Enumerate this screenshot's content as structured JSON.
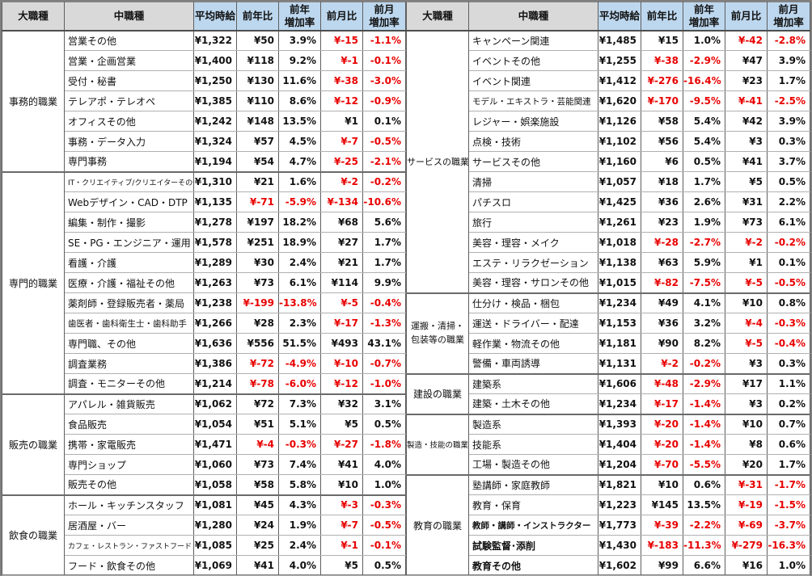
{
  "colors": {
    "negative_value": "#e80000",
    "positive_value": "#111111",
    "header_gray": "#d9d9d9",
    "header_blue": "#bdd7ee"
  },
  "chart_data": {
    "type": "table",
    "columns": [
      "大職種",
      "中職種",
      "平均時給",
      "前年比",
      "前年\n増加率",
      "前月比",
      "前月\n増加率"
    ],
    "tables": [
      {
        "groups": [
          {
            "name": "事務的職業",
            "rows": [
              {
                "label": "営業その他",
                "values": [
                  "¥1,322",
                  "¥50",
                  "3.9%",
                  "¥-15",
                  "-1.1%"
                ]
              },
              {
                "label": "営業・企画営業",
                "values": [
                  "¥1,400",
                  "¥118",
                  "9.2%",
                  "¥-1",
                  "-0.1%"
                ]
              },
              {
                "label": "受付・秘書",
                "values": [
                  "¥1,250",
                  "¥130",
                  "11.6%",
                  "¥-38",
                  "-3.0%"
                ]
              },
              {
                "label": "テレアポ・テレオペ",
                "values": [
                  "¥1,385",
                  "¥110",
                  "8.6%",
                  "¥-12",
                  "-0.9%"
                ]
              },
              {
                "label": "オフィスその他",
                "values": [
                  "¥1,242",
                  "¥148",
                  "13.5%",
                  "¥1",
                  "0.1%"
                ]
              },
              {
                "label": "事務・データ入力",
                "values": [
                  "¥1,324",
                  "¥57",
                  "4.5%",
                  "¥-7",
                  "-0.5%"
                ]
              },
              {
                "label": "専門事務",
                "values": [
                  "¥1,194",
                  "¥54",
                  "4.7%",
                  "¥-25",
                  "-2.1%"
                ]
              }
            ]
          },
          {
            "name": "専門的職業",
            "rows": [
              {
                "label": "IT・クリエイティブ/クリエイターその他",
                "values": [
                  "¥1,310",
                  "¥21",
                  "1.6%",
                  "¥-2",
                  "-0.2%"
                ]
              },
              {
                "label": "Webデザイン・CAD・DTP",
                "values": [
                  "¥1,135",
                  "¥-71",
                  "-5.9%",
                  "¥-134",
                  "-10.6%"
                ]
              },
              {
                "label": "編集・制作・撮影",
                "values": [
                  "¥1,278",
                  "¥197",
                  "18.2%",
                  "¥68",
                  "5.6%"
                ]
              },
              {
                "label": "SE・PG・エンジニア・運用",
                "values": [
                  "¥1,578",
                  "¥251",
                  "18.9%",
                  "¥27",
                  "1.7%"
                ]
              },
              {
                "label": "看護・介護",
                "values": [
                  "¥1,289",
                  "¥30",
                  "2.4%",
                  "¥21",
                  "1.7%"
                ]
              },
              {
                "label": "医療・介護・福祉その他",
                "values": [
                  "¥1,263",
                  "¥73",
                  "6.1%",
                  "¥114",
                  "9.9%"
                ]
              },
              {
                "label": "薬剤師・登録販売者・薬局",
                "values": [
                  "¥1,238",
                  "¥-199",
                  "-13.8%",
                  "¥-5",
                  "-0.4%"
                ]
              },
              {
                "label": "歯医者・歯科衛生士・歯科助手",
                "values": [
                  "¥1,266",
                  "¥28",
                  "2.3%",
                  "¥-17",
                  "-1.3%"
                ]
              },
              {
                "label": "専門職、その他",
                "values": [
                  "¥1,636",
                  "¥556",
                  "51.5%",
                  "¥493",
                  "43.1%"
                ]
              },
              {
                "label": "調査業務",
                "values": [
                  "¥1,386",
                  "¥-72",
                  "-4.9%",
                  "¥-10",
                  "-0.7%"
                ]
              },
              {
                "label": "調査・モニターその他",
                "values": [
                  "¥1,214",
                  "¥-78",
                  "-6.0%",
                  "¥-12",
                  "-1.0%"
                ]
              }
            ]
          },
          {
            "name": "販売の職業",
            "rows": [
              {
                "label": "アパレル・雑貨販売",
                "values": [
                  "¥1,062",
                  "¥72",
                  "7.3%",
                  "¥32",
                  "3.1%"
                ]
              },
              {
                "label": "食品販売",
                "values": [
                  "¥1,054",
                  "¥51",
                  "5.1%",
                  "¥5",
                  "0.5%"
                ]
              },
              {
                "label": "携帯・家電販売",
                "values": [
                  "¥1,471",
                  "¥-4",
                  "-0.3%",
                  "¥-27",
                  "-1.8%"
                ]
              },
              {
                "label": "専門ショップ",
                "values": [
                  "¥1,060",
                  "¥73",
                  "7.4%",
                  "¥41",
                  "4.0%"
                ]
              },
              {
                "label": "販売その他",
                "values": [
                  "¥1,058",
                  "¥58",
                  "5.8%",
                  "¥10",
                  "1.0%"
                ]
              }
            ]
          },
          {
            "name": "飲食の職業",
            "rows": [
              {
                "label": "ホール・キッチンスタッフ",
                "values": [
                  "¥1,081",
                  "¥45",
                  "4.3%",
                  "¥-3",
                  "-0.3%"
                ]
              },
              {
                "label": "居酒屋・バー",
                "values": [
                  "¥1,280",
                  "¥24",
                  "1.9%",
                  "¥-7",
                  "-0.5%"
                ]
              },
              {
                "label": "カフェ・レストラン・ファストフード",
                "values": [
                  "¥1,085",
                  "¥25",
                  "2.4%",
                  "¥-1",
                  "-0.1%"
                ]
              },
              {
                "label": "フード・飲食その他",
                "values": [
                  "¥1,069",
                  "¥41",
                  "4.0%",
                  "¥5",
                  "0.5%"
                ]
              }
            ]
          }
        ]
      },
      {
        "groups": [
          {
            "name": "サービスの職業",
            "rows": [
              {
                "label": "キャンペーン関連",
                "values": [
                  "¥1,485",
                  "¥15",
                  "1.0%",
                  "¥-42",
                  "-2.8%"
                ]
              },
              {
                "label": "イベントその他",
                "values": [
                  "¥1,255",
                  "¥-38",
                  "-2.9%",
                  "¥47",
                  "3.9%"
                ]
              },
              {
                "label": "イベント関連",
                "values": [
                  "¥1,412",
                  "¥-276",
                  "-16.4%",
                  "¥23",
                  "1.7%"
                ]
              },
              {
                "label": "モデル・エキストラ・芸能関連",
                "values": [
                  "¥1,620",
                  "¥-170",
                  "-9.5%",
                  "¥-41",
                  "-2.5%"
                ]
              },
              {
                "label": "レジャー・娯楽施設",
                "values": [
                  "¥1,126",
                  "¥58",
                  "5.4%",
                  "¥42",
                  "3.9%"
                ]
              },
              {
                "label": "点検・技術",
                "values": [
                  "¥1,102",
                  "¥56",
                  "5.4%",
                  "¥3",
                  "0.3%"
                ]
              },
              {
                "label": "サービスその他",
                "values": [
                  "¥1,160",
                  "¥6",
                  "0.5%",
                  "¥41",
                  "3.7%"
                ]
              },
              {
                "label": "清掃",
                "values": [
                  "¥1,057",
                  "¥18",
                  "1.7%",
                  "¥5",
                  "0.5%"
                ]
              },
              {
                "label": "パチスロ",
                "values": [
                  "¥1,425",
                  "¥36",
                  "2.6%",
                  "¥31",
                  "2.2%"
                ]
              },
              {
                "label": "旅行",
                "values": [
                  "¥1,261",
                  "¥23",
                  "1.9%",
                  "¥73",
                  "6.1%"
                ]
              },
              {
                "label": "美容・理容・メイク",
                "values": [
                  "¥1,018",
                  "¥-28",
                  "-2.7%",
                  "¥-2",
                  "-0.2%"
                ]
              },
              {
                "label": "エステ・リラクゼーション",
                "values": [
                  "¥1,138",
                  "¥63",
                  "5.9%",
                  "¥1",
                  "0.1%"
                ]
              },
              {
                "label": "美容・理容・サロンその他",
                "values": [
                  "¥1,015",
                  "¥-82",
                  "-7.5%",
                  "¥-5",
                  "-0.5%"
                ]
              }
            ]
          },
          {
            "name": "運搬・清掃・包装等の職業",
            "rows": [
              {
                "label": "仕分け・検品・梱包",
                "values": [
                  "¥1,234",
                  "¥49",
                  "4.1%",
                  "¥10",
                  "0.8%"
                ]
              },
              {
                "label": "運送・ドライバー・配達",
                "values": [
                  "¥1,153",
                  "¥36",
                  "3.2%",
                  "¥-4",
                  "-0.3%"
                ]
              },
              {
                "label": "軽作業・物流その他",
                "values": [
                  "¥1,181",
                  "¥90",
                  "8.2%",
                  "¥-5",
                  "-0.4%"
                ]
              },
              {
                "label": "警備・車両誘導",
                "values": [
                  "¥1,131",
                  "¥-2",
                  "-0.2%",
                  "¥3",
                  "0.3%"
                ]
              }
            ]
          },
          {
            "name": "建設の職業",
            "rows": [
              {
                "label": "建築系",
                "values": [
                  "¥1,606",
                  "¥-48",
                  "-2.9%",
                  "¥17",
                  "1.1%"
                ]
              },
              {
                "label": "建築・土木その他",
                "values": [
                  "¥1,234",
                  "¥-17",
                  "-1.4%",
                  "¥3",
                  "0.2%"
                ]
              }
            ]
          },
          {
            "name": "製造・技能の職業",
            "rows": [
              {
                "label": "製造系",
                "values": [
                  "¥1,393",
                  "¥-20",
                  "-1.4%",
                  "¥10",
                  "0.7%"
                ]
              },
              {
                "label": "技能系",
                "values": [
                  "¥1,404",
                  "¥-20",
                  "-1.4%",
                  "¥8",
                  "0.6%"
                ]
              },
              {
                "label": "工場・製造その他",
                "values": [
                  "¥1,204",
                  "¥-70",
                  "-5.5%",
                  "¥20",
                  "1.7%"
                ]
              }
            ]
          },
          {
            "name": "教育の職業",
            "rows": [
              {
                "label": "塾講師・家庭教師",
                "values": [
                  "¥1,821",
                  "¥10",
                  "0.6%",
                  "¥-31",
                  "-1.7%"
                ]
              },
              {
                "label": "教育・保育",
                "values": [
                  "¥1,223",
                  "¥145",
                  "13.5%",
                  "¥-19",
                  "-1.5%"
                ]
              },
              {
                "label": "教師・講師・インストラクター",
                "bold": true,
                "values": [
                  "¥1,773",
                  "¥-39",
                  "-2.2%",
                  "¥-69",
                  "-3.7%"
                ]
              },
              {
                "label": "試験監督･添削",
                "bold": true,
                "values": [
                  "¥1,430",
                  "¥-183",
                  "-11.3%",
                  "¥-279",
                  "-16.3%"
                ]
              },
              {
                "label": "教育その他",
                "bold": true,
                "values": [
                  "¥1,602",
                  "¥99",
                  "6.6%",
                  "¥16",
                  "1.0%"
                ]
              }
            ]
          }
        ]
      }
    ]
  }
}
